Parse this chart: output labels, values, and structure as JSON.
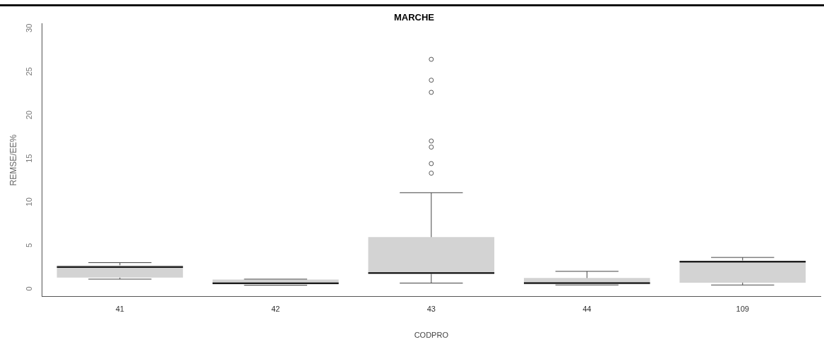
{
  "chart_data": {
    "type": "box",
    "title": "MARCHE",
    "xlabel": "CODPRO",
    "ylabel": "REMSE/EE%",
    "categories": [
      "41",
      "42",
      "43",
      "44",
      "109"
    ],
    "color": "#d3d3d3",
    "boxes": [
      {
        "low": 1.1,
        "q1": 1.27,
        "median": 2.5,
        "q3": 2.7,
        "high": 3.0
      },
      {
        "low": 0.4,
        "q1": 0.5,
        "median": 0.62,
        "q3": 1.05,
        "high": 1.1
      },
      {
        "low": 0.65,
        "q1": 1.7,
        "median": 1.8,
        "q3": 5.94,
        "high": 11.05,
        "outliers": [
          26.4,
          24.0,
          22.6,
          17.0,
          16.3,
          14.4,
          13.3
        ]
      },
      {
        "low": 0.43,
        "q1": 0.5,
        "median": 0.65,
        "q3": 1.23,
        "high": 2.0
      },
      {
        "low": 0.43,
        "q1": 0.7,
        "median": 3.1,
        "q3": 3.25,
        "high": 3.6
      }
    ],
    "ylim": [
      -0.9,
      30.5
    ],
    "yticks": [
      0,
      5,
      10,
      15,
      20,
      25,
      30
    ],
    "grid": false,
    "legend": false
  }
}
